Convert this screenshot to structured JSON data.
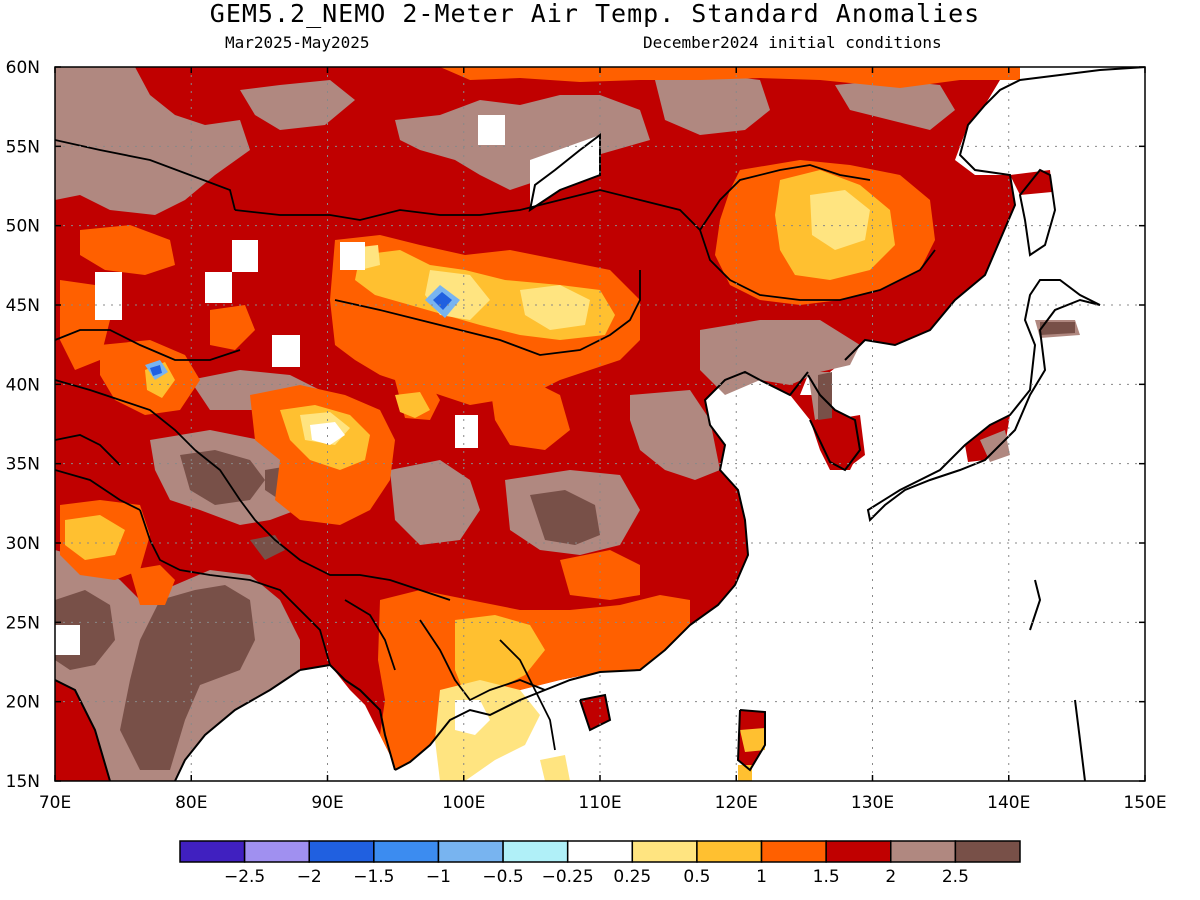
{
  "title": "GEM5.2_NEMO 2-Meter Air Temp. Standard Anomalies",
  "subtitle_left": "Mar2025-May2025",
  "subtitle_right": "December2024 initial conditions",
  "map": {
    "lon_range": [
      70,
      150
    ],
    "lat_range": [
      15,
      60
    ],
    "lat_ticks": [
      "60N",
      "55N",
      "50N",
      "45N",
      "40N",
      "35N",
      "30N",
      "25N",
      "20N",
      "15N"
    ],
    "lon_ticks": [
      "70E",
      "80E",
      "90E",
      "100E",
      "110E",
      "120E",
      "130E",
      "140E",
      "150E"
    ],
    "grid": "dotted",
    "base_fill_color": "#c00000",
    "ocean_color": "#ffffff",
    "coastline_color": "#000000"
  },
  "colorbar": {
    "colors": [
      "#4020c0",
      "#a090f0",
      "#2060e0",
      "#3c8cf0",
      "#78b4f0",
      "#b0f0f8",
      "#ffffff",
      "#ffe480",
      "#ffc030",
      "#ff6000",
      "#c00000",
      "#b08880",
      "#785048"
    ],
    "labels": [
      "-2.5",
      "-2",
      "-1.5",
      "-1",
      "-0.5",
      "-0.25",
      "0.25",
      "0.5",
      "1",
      "1.5",
      "2",
      "2.5"
    ]
  }
}
